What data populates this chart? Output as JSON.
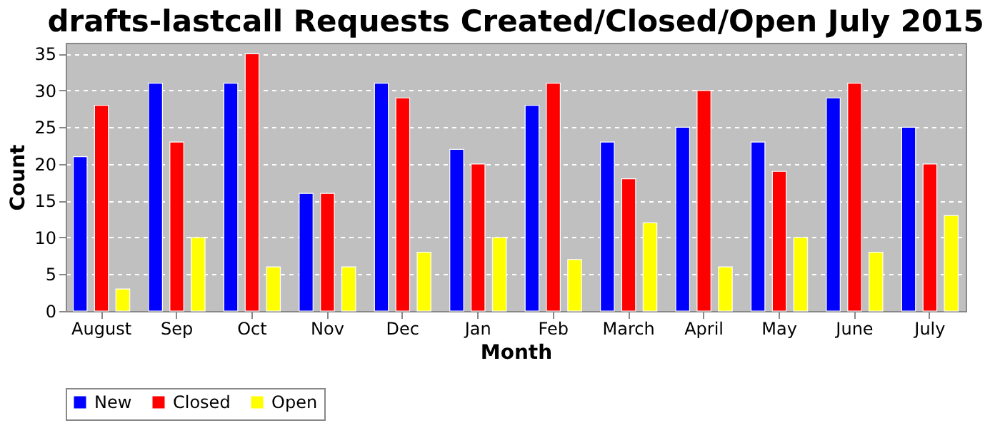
{
  "chart_data": {
    "type": "bar",
    "title": "drafts-lastcall Requests Created/Closed/Open July 2015",
    "xlabel": "Month",
    "ylabel": "Count",
    "categories": [
      "August",
      "Sep",
      "Oct",
      "Nov",
      "Dec",
      "Jan",
      "Feb",
      "March",
      "April",
      "May",
      "June",
      "July"
    ],
    "series": [
      {
        "name": "New",
        "color": "#0000ff",
        "values": [
          21,
          31,
          31,
          16,
          31,
          22,
          28,
          23,
          25,
          23,
          29,
          25
        ]
      },
      {
        "name": "Closed",
        "color": "#ff0000",
        "values": [
          28,
          23,
          35,
          16,
          29,
          20,
          31,
          18,
          30,
          19,
          31,
          20
        ]
      },
      {
        "name": "Open",
        "color": "#ffff00",
        "values": [
          3,
          10,
          6,
          6,
          8,
          10,
          7,
          12,
          6,
          10,
          8,
          13
        ]
      }
    ],
    "ylim": [
      0,
      36.5
    ],
    "yticks": [
      0,
      5,
      10,
      15,
      20,
      25,
      30,
      35
    ],
    "grid": "y",
    "legend": "bottom"
  }
}
